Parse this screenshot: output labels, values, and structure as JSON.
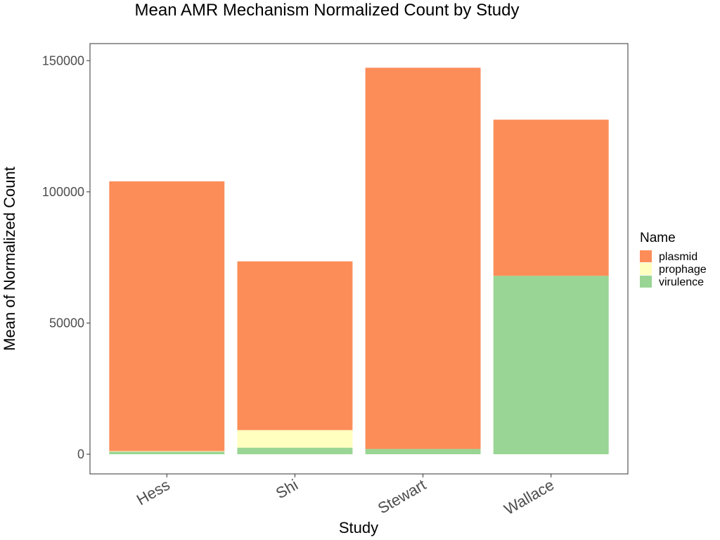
{
  "chart_data": {
    "type": "bar",
    "stacked": true,
    "title": "Mean AMR Mechanism Normalized Count by Study",
    "xlabel": "Study",
    "ylabel": "Mean of Normalized Count",
    "categories": [
      "Hess",
      "Shi",
      "Stewart",
      "Wallace"
    ],
    "series": [
      {
        "name": "virulence",
        "color": "#99d594",
        "values": [
          1000,
          2500,
          2000,
          68000
        ]
      },
      {
        "name": "prophage",
        "color": "#ffffbf",
        "values": [
          200,
          6700,
          0,
          0
        ]
      },
      {
        "name": "plasmid",
        "color": "#fc8d59",
        "values": [
          102800,
          64300,
          145300,
          59500
        ]
      }
    ],
    "ylim": [
      -7500,
      156500
    ],
    "yticks": [
      0,
      50000,
      100000,
      150000
    ],
    "ytick_labels": [
      "0",
      "50000",
      "100000",
      "150000"
    ],
    "legend": {
      "title": "Name",
      "entries": [
        "plasmid",
        "prophage",
        "virulence"
      ],
      "position": "right"
    },
    "grid": false
  }
}
